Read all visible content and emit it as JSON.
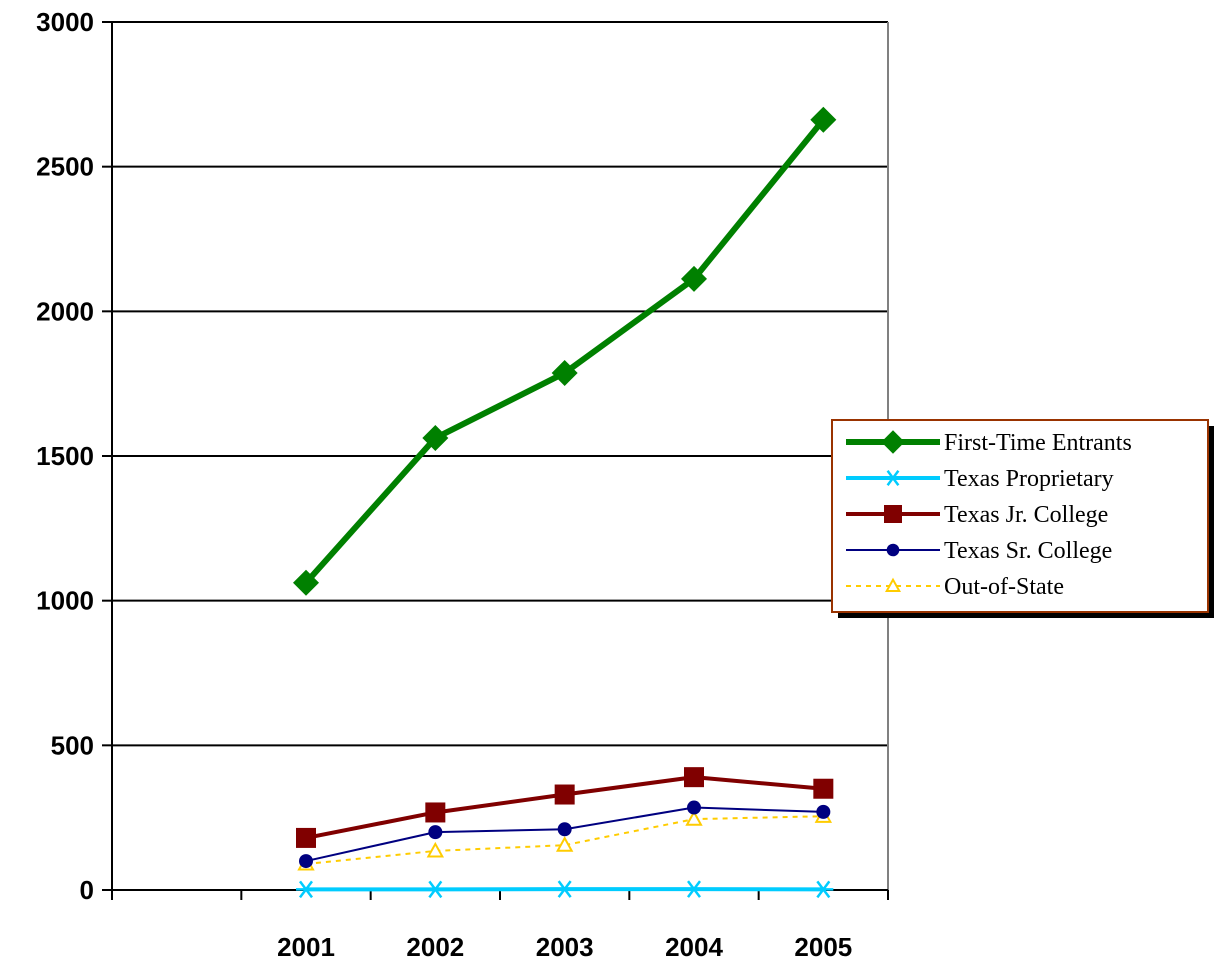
{
  "chart_data": {
    "type": "line",
    "title": "",
    "xlabel": "",
    "ylabel": "",
    "categories": [
      "2001",
      "2002",
      "2003",
      "2004",
      "2005"
    ],
    "ylim": [
      0,
      3000
    ],
    "yticks": [
      "0",
      "500",
      "1000",
      "1500",
      "2000",
      "2500",
      "3000"
    ],
    "grid": "horizontal",
    "legend_position": "right",
    "series": [
      {
        "name": "First-Time Entrants",
        "values": [
          1062,
          1562,
          1787,
          2112,
          2662
        ],
        "color": "#008000",
        "marker": "diamond",
        "line": "solid-thick"
      },
      {
        "name": "Texas Proprietary",
        "values": [
          2,
          2,
          3,
          3,
          2
        ],
        "color": "#00ccff",
        "marker": "asterisk",
        "line": "solid"
      },
      {
        "name": "Texas Jr. College",
        "values": [
          180,
          268,
          330,
          390,
          350
        ],
        "color": "#800000",
        "marker": "square",
        "line": "solid"
      },
      {
        "name": "Texas Sr. College",
        "values": [
          100,
          200,
          210,
          285,
          270
        ],
        "color": "#000080",
        "marker": "circle",
        "line": "solid-thin"
      },
      {
        "name": "Out-of-State",
        "values": [
          90,
          135,
          155,
          245,
          255
        ],
        "color": "#ffcc00",
        "marker": "triangle",
        "line": "dashed"
      }
    ]
  }
}
